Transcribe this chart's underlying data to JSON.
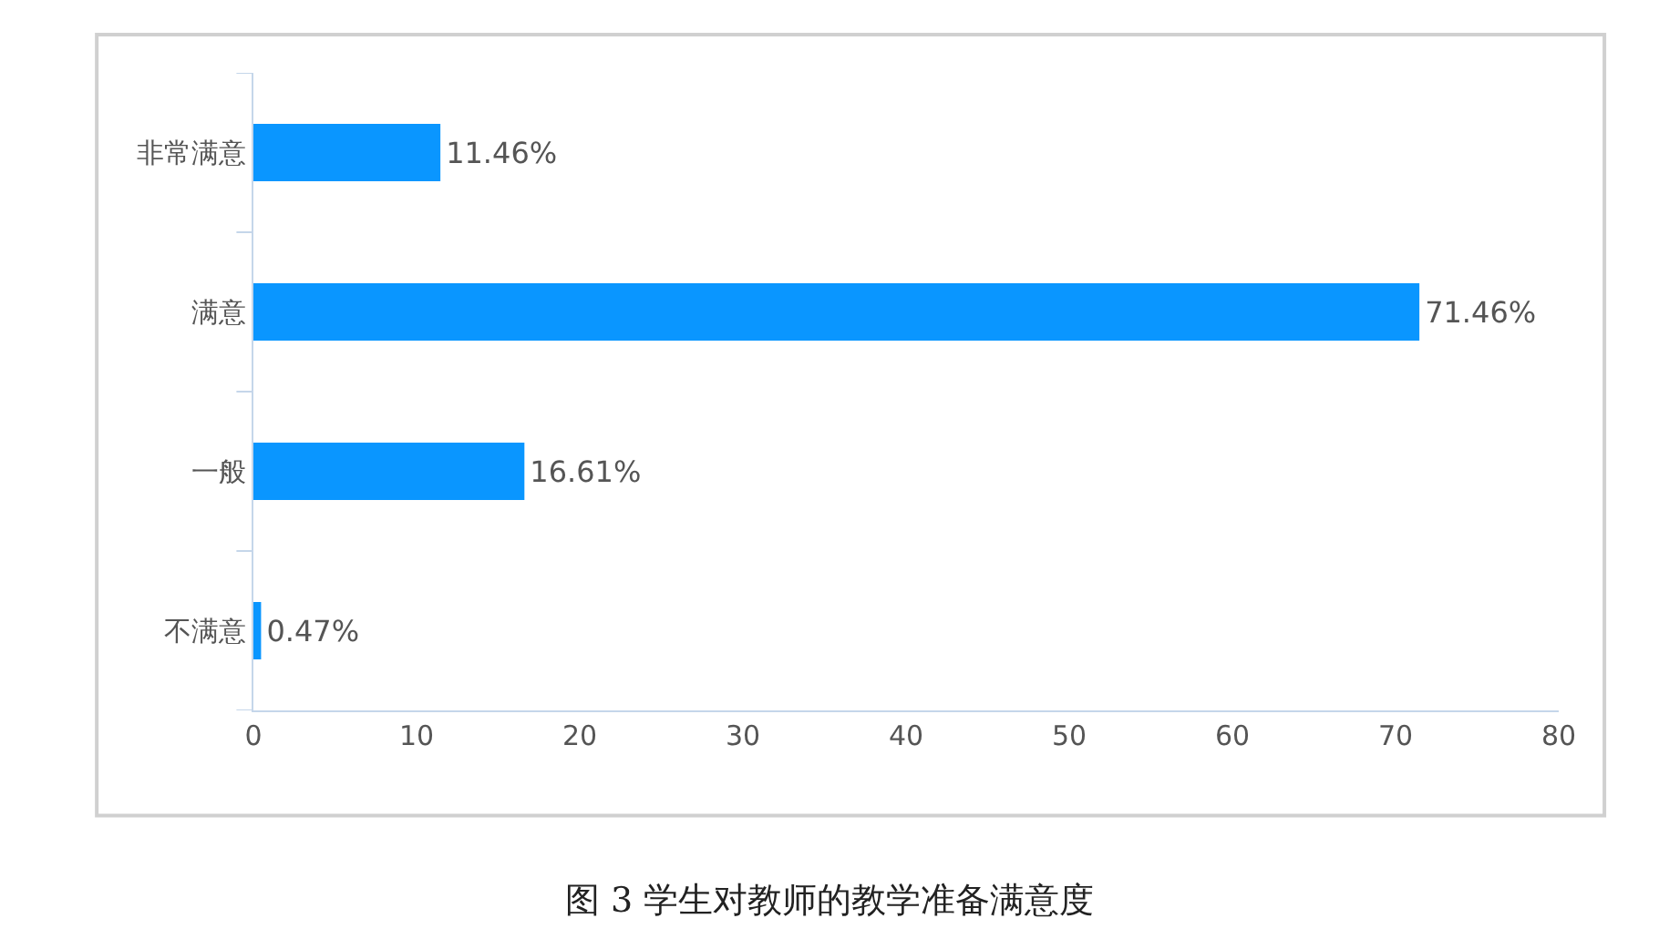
{
  "chart_data": {
    "type": "bar",
    "orientation": "horizontal",
    "title": "图 3 学生对教师的教学准备满意度",
    "categories": [
      "非常满意",
      "满意",
      "一般",
      "不满意"
    ],
    "values": [
      11.46,
      71.46,
      16.61,
      0.47
    ],
    "value_labels": [
      "11.46%",
      "71.46%",
      "16.61%",
      "0.47%"
    ],
    "color": "#0a96ff",
    "xlim": [
      0,
      80
    ],
    "xticks": [
      0,
      10,
      20,
      30,
      40,
      50,
      60,
      70,
      80
    ]
  }
}
